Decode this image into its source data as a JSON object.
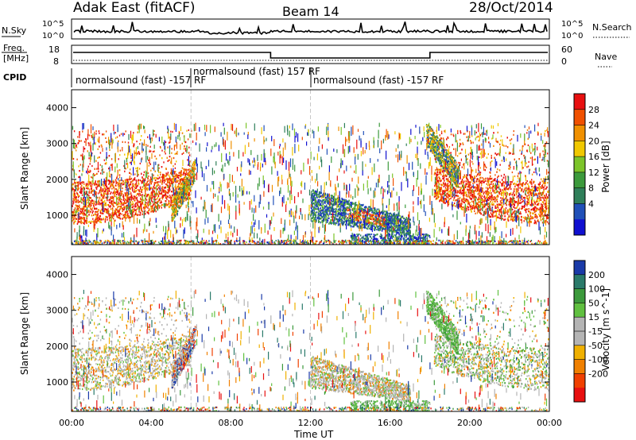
{
  "header": {
    "title": "Adak East (fitACF)",
    "beam": "Beam 14",
    "date": "28/Oct/2014"
  },
  "panels": {
    "nsky_label": "N.Sky",
    "nsearch_label": "N.Search",
    "nsky_ticks": [
      "10^5",
      "10^0"
    ],
    "nsearch_ticks": [
      "10^5",
      "10^0"
    ],
    "freq_label_line1": "Freq.",
    "freq_label_line2": "[MHz]",
    "freq_ticks": [
      "18",
      "8"
    ],
    "nave_label": "Nave",
    "nave_ticks": [
      "60",
      "0"
    ],
    "cpid_label": "CPID",
    "cpid_segments": [
      {
        "text": "normalsound (fast) -157 RF"
      },
      {
        "text": "normalsound (fast) 157 RF"
      },
      {
        "text": "normalsound (fast) -157 RF"
      }
    ]
  },
  "colors": {
    "power": [
      "#1010d0",
      "#2050b8",
      "#2f7f5a",
      "#3c9a3c",
      "#7cc42a",
      "#f0c800",
      "#f09000",
      "#f05000",
      "#e81010"
    ],
    "velocity": [
      "#e81010",
      "#f04000",
      "#f08000",
      "#f0b000",
      "#b4b4b4",
      "#b4b4b4",
      "#60c040",
      "#3c9a3c",
      "#2a7a6a",
      "#1a3aa8"
    ]
  },
  "chart_data": [
    {
      "type": "heatmap",
      "name": "Power",
      "ylabel": "Slant Range [km]",
      "ylim": [
        180,
        4500
      ],
      "yticks": [
        "1000",
        "2000",
        "3000",
        "4000"
      ],
      "xlim": [
        0,
        24
      ],
      "colorbar_label": "Power [dB]",
      "colorbar_ticks": [
        "4",
        "8",
        "12",
        "16",
        "20",
        "24",
        "28"
      ],
      "regions": [
        {
          "t_start": 0,
          "t_end": 6,
          "r_low": 750,
          "r_high": 3400,
          "dominant": "28"
        },
        {
          "t_start": 12,
          "t_end": 17,
          "r_low": 500,
          "r_high": 1700,
          "dominant": "8-24"
        },
        {
          "t_start": 18,
          "t_end": 24,
          "r_low": 750,
          "r_high": 3400,
          "dominant": "28"
        }
      ]
    },
    {
      "type": "heatmap",
      "name": "Velocity",
      "ylabel": "Slant Range [km]",
      "ylim": [
        180,
        4500
      ],
      "yticks": [
        "1000",
        "2000",
        "3000",
        "4000"
      ],
      "xlim": [
        0,
        24
      ],
      "xlabel": "Time UT",
      "xticks": [
        "00:00",
        "04:00",
        "08:00",
        "12:00",
        "16:00",
        "20:00",
        "00:00"
      ],
      "colorbar_label": "Velocity [m s^-1]",
      "colorbar_ticks": [
        "200",
        "100",
        "50",
        "15",
        "-15",
        "-50",
        "-100",
        "-200"
      ],
      "regions": [
        {
          "t_start": 0,
          "t_end": 6,
          "r_low": 750,
          "r_high": 2400,
          "dominant": "-15 to 15"
        },
        {
          "t_start": 12,
          "t_end": 17,
          "r_low": 500,
          "r_high": 1700,
          "dominant": "-15 to 15"
        },
        {
          "t_start": 18,
          "t_end": 24,
          "r_low": 750,
          "r_high": 3000,
          "dominant": "-15 to 50"
        }
      ]
    }
  ]
}
